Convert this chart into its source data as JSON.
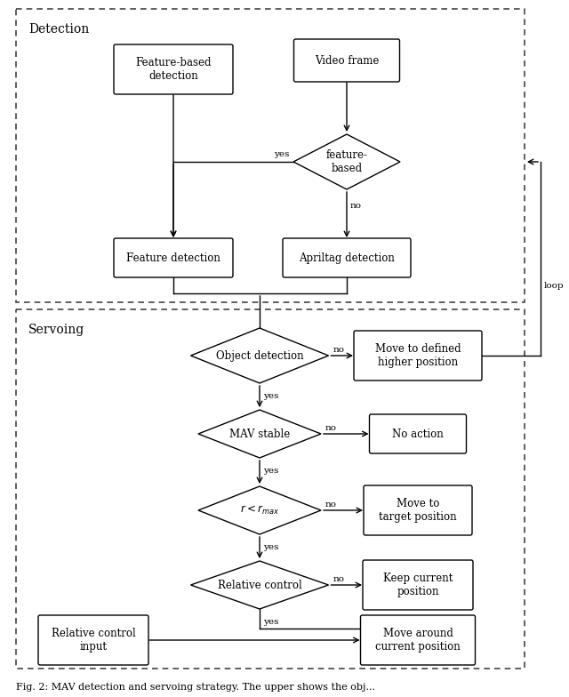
{
  "fig_width": 6.4,
  "fig_height": 7.84,
  "dpi": 100,
  "bg_color": "#ffffff",
  "box_fc": "#ffffff",
  "box_ec": "#000000",
  "arrow_color": "#000000",
  "dash_ec": "#444444",
  "font_size": 8.5,
  "section_font_size": 10,
  "caption_font_size": 8,
  "detection_label": "Detection",
  "servoing_label": "Servoing",
  "caption": "Fig. 2: MAV detection and servoing strategy. The upper shows the obj..."
}
